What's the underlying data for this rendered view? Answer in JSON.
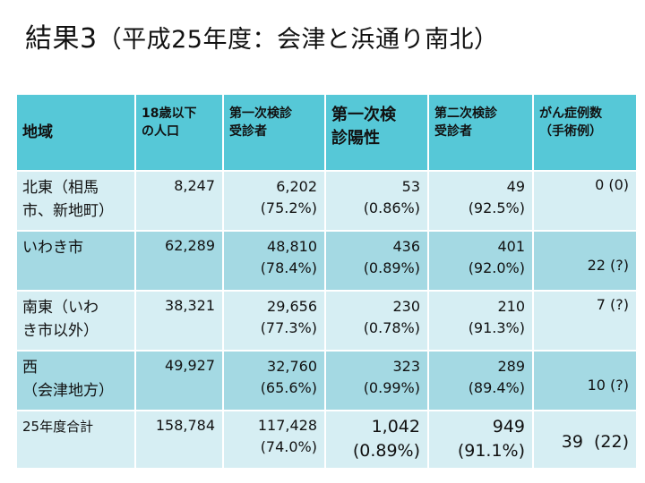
{
  "title": {
    "main": "結果3",
    "sub": "（平成25年度：会津と浜通り南北）"
  },
  "table": {
    "headers": {
      "region": "地域",
      "population": [
        "18歳以下",
        "の人口"
      ],
      "examinees": [
        "第一次検診",
        "受診者"
      ],
      "positive": [
        "第一次検",
        "診陽性"
      ],
      "second": [
        "第二次検診",
        "受診者"
      ],
      "cases": [
        "がん症例数",
        "（手術例）"
      ]
    },
    "rows": [
      {
        "region": [
          "北東（相馬",
          "市、新地町）"
        ],
        "population": "8,247",
        "examinees": [
          "6,202",
          "(75.2%)"
        ],
        "positive": [
          "53",
          "(0.86%)"
        ],
        "second": [
          "49",
          "(92.5%)"
        ],
        "cases": "0 (0)"
      },
      {
        "region": [
          "いわき市"
        ],
        "population": "62,289",
        "examinees": [
          "48,810",
          "(78.4%)"
        ],
        "positive": [
          "436",
          "(0.89%)"
        ],
        "second": [
          "401",
          "(92.0%)"
        ],
        "cases": "22 (?)"
      },
      {
        "region": [
          "南東（いわ",
          "き市以外）"
        ],
        "population": "38,321",
        "examinees": [
          "29,656",
          "(77.3%)"
        ],
        "positive": [
          "230",
          "(0.78%)"
        ],
        "second": [
          "210",
          "(91.3%)"
        ],
        "cases": "7 (?)"
      },
      {
        "region": [
          "西",
          "（会津地方）"
        ],
        "population": "49,927",
        "examinees": [
          "32,760",
          "(65.6%)"
        ],
        "positive": [
          "323",
          "(0.99%)"
        ],
        "second": [
          "289",
          "(89.4%)"
        ],
        "cases": "10 (?)"
      },
      {
        "region": [
          "25年度合計"
        ],
        "population": "158,784",
        "examinees": [
          "117,428",
          "(74.0%)"
        ],
        "positive": [
          "1,042",
          "(0.89%)"
        ],
        "second": [
          "949",
          "(91.1%)"
        ],
        "cases": "39  (22)"
      }
    ]
  },
  "colors": {
    "header_bg": "#56c8d7",
    "row_light": "#d6eef3",
    "row_dark": "#a4d9e3"
  }
}
